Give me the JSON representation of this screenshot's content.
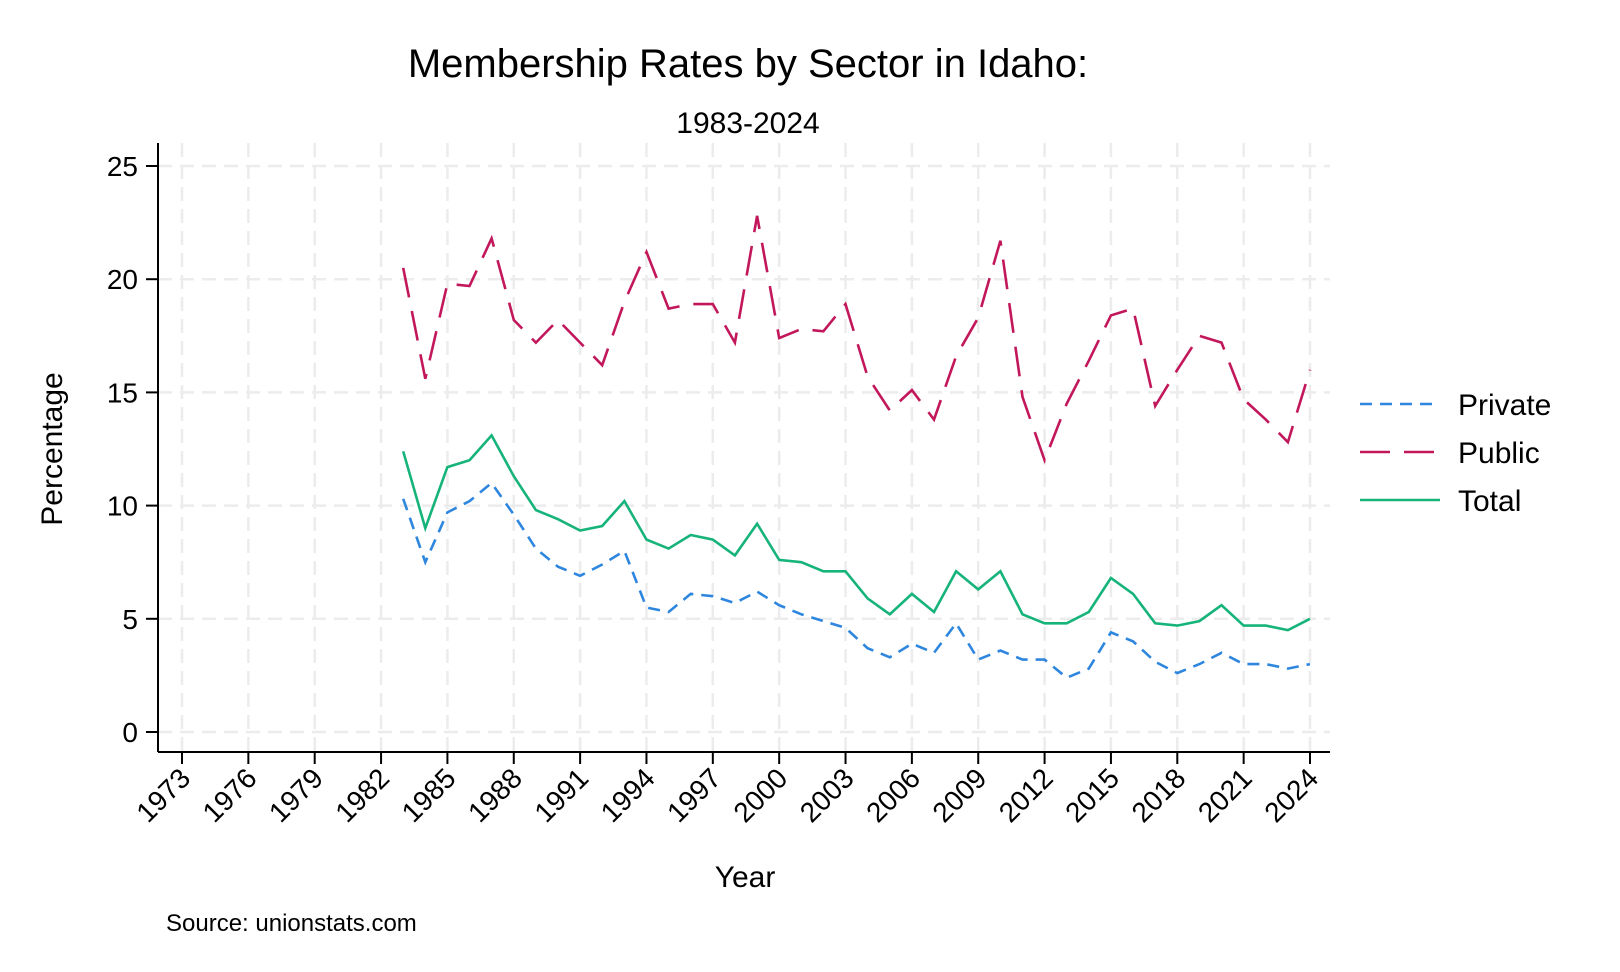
{
  "chart_data": {
    "type": "line",
    "title": "Membership Rates by Sector in Idaho:",
    "subtitle": "1983-2024",
    "xlabel": "Year",
    "ylabel": "Percentage",
    "xlim": [
      1973,
      2024
    ],
    "ylim": [
      0,
      25
    ],
    "x_ticks": [
      1973,
      1976,
      1979,
      1982,
      1985,
      1988,
      1991,
      1994,
      1997,
      2000,
      2003,
      2006,
      2009,
      2012,
      2015,
      2018,
      2021,
      2024
    ],
    "y_ticks": [
      0,
      5,
      10,
      15,
      20,
      25
    ],
    "grid": true,
    "legend_position": "right",
    "source": "Source: unionstats.com",
    "x": [
      1983,
      1984,
      1985,
      1986,
      1987,
      1988,
      1989,
      1990,
      1991,
      1992,
      1993,
      1994,
      1995,
      1996,
      1997,
      1998,
      1999,
      2000,
      2001,
      2002,
      2003,
      2004,
      2005,
      2006,
      2007,
      2008,
      2009,
      2010,
      2011,
      2012,
      2013,
      2014,
      2015,
      2016,
      2017,
      2018,
      2019,
      2020,
      2021,
      2022,
      2023,
      2024
    ],
    "series": [
      {
        "name": "Private",
        "color": "#2e86de",
        "dash": "short",
        "values": [
          10.3,
          7.5,
          9.7,
          10.2,
          11.0,
          9.6,
          8.1,
          7.3,
          6.9,
          7.4,
          8.0,
          5.5,
          5.3,
          6.1,
          6.0,
          5.7,
          6.2,
          5.6,
          5.2,
          4.9,
          4.6,
          3.7,
          3.3,
          3.9,
          3.5,
          4.8,
          3.2,
          3.6,
          3.2,
          3.2,
          2.4,
          2.8,
          4.4,
          4.0,
          3.1,
          2.6,
          3.0,
          3.5,
          3.0,
          3.0,
          2.8,
          3.0
        ]
      },
      {
        "name": "Public",
        "color": "#c2185b",
        "dash": "long",
        "values": [
          20.5,
          15.6,
          19.8,
          19.7,
          21.8,
          18.2,
          17.2,
          18.2,
          17.2,
          16.2,
          19.0,
          21.2,
          18.7,
          18.9,
          18.9,
          17.2,
          22.8,
          17.4,
          17.8,
          17.7,
          18.9,
          15.7,
          14.2,
          15.1,
          13.8,
          16.6,
          18.3,
          21.7,
          14.8,
          12.0,
          14.5,
          16.4,
          18.4,
          18.7,
          14.4,
          16.0,
          17.5,
          17.2,
          14.7,
          13.8,
          12.8,
          16.0
        ]
      },
      {
        "name": "Total",
        "color": "#16b37a",
        "dash": "solid",
        "values": [
          12.4,
          9.0,
          11.7,
          12.0,
          13.1,
          11.3,
          9.8,
          9.4,
          8.9,
          9.1,
          10.2,
          8.5,
          8.1,
          8.7,
          8.5,
          7.8,
          9.2,
          7.6,
          7.5,
          7.1,
          7.1,
          5.9,
          5.2,
          6.1,
          5.3,
          7.1,
          6.3,
          7.1,
          5.2,
          4.8,
          4.8,
          5.3,
          6.8,
          6.1,
          4.8,
          4.7,
          4.9,
          5.6,
          4.7,
          4.7,
          4.5,
          5.0
        ]
      }
    ]
  }
}
